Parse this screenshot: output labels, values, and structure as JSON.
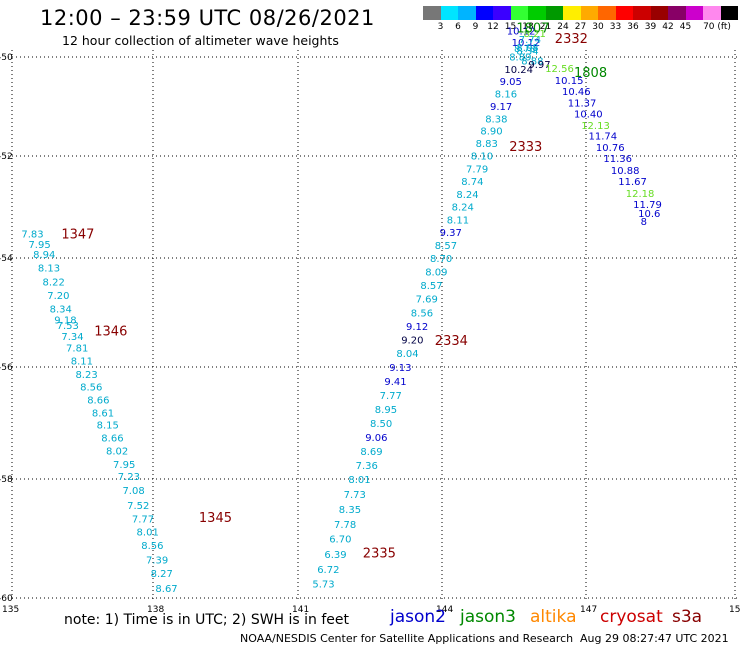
{
  "title": "12:00 – 23:59 UTC 08/26/2021",
  "subtitle": "12 hour collection of altimeter wave heights",
  "scale": {
    "colors": [
      "#777777",
      "#00e5ff",
      "#00b4ff",
      "#0000ff",
      "#3b00ff",
      "#33ff33",
      "#00cc00",
      "#009900",
      "#ffee00",
      "#ffaa00",
      "#ff6600",
      "#ff0000",
      "#cc0000",
      "#990000",
      "#880066",
      "#cc00cc",
      "#ff88ee",
      "#000000"
    ],
    "labels": [
      "3",
      "6",
      "9",
      "12",
      "15",
      "18",
      "21",
      "24",
      "27",
      "30",
      "33",
      "36",
      "39",
      "42",
      "45",
      "70 (ft)"
    ]
  },
  "note": "note: 1) Time is in UTC; 2) SWH is in feet",
  "legend": [
    {
      "name": "jason2",
      "color": "#0000cc"
    },
    {
      "name": "jason3",
      "color": "#008800"
    },
    {
      "name": "altika",
      "color": "#ff8800"
    },
    {
      "name": "cryosat",
      "color": "#cc0000"
    },
    {
      "name": "s3a",
      "color": "#880000"
    }
  ],
  "credit": "NOAA/NESDIS Center for Satellite Applications and Research",
  "timestamp": "Aug 29 08:27:47 UTC 2021",
  "chart_data": {
    "type": "scatter",
    "title": "12:00 – 23:59 UTC 08/26/2021",
    "xlabel": "",
    "ylabel": "",
    "xlim": [
      135,
      150
    ],
    "ylim": [
      -60.2,
      -49.8
    ],
    "x_ticks": [
      "135",
      "138",
      "141",
      "144",
      "147",
      "150"
    ],
    "y_ticks": [
      "-50",
      "-52",
      "-54",
      "-56",
      "-58",
      "-60"
    ],
    "grid": true,
    "series_colors": {
      "c": "#00aacc",
      "b": "#0000cc",
      "n": "#000044",
      "g": "#66dd22"
    },
    "points": [
      {
        "x": 135.2,
        "y": -53.6,
        "v": "7.83",
        "c": "c"
      },
      {
        "x": 135.35,
        "y": -53.8,
        "v": "7.95",
        "c": "c"
      },
      {
        "x": 135.45,
        "y": -54.0,
        "v": "8.94",
        "c": "c"
      },
      {
        "x": 135.55,
        "y": -54.25,
        "v": "8.13",
        "c": "c"
      },
      {
        "x": 135.65,
        "y": -54.5,
        "v": "8.22",
        "c": "c"
      },
      {
        "x": 135.75,
        "y": -54.75,
        "v": "7.20",
        "c": "c"
      },
      {
        "x": 135.8,
        "y": -55.0,
        "v": "8.34",
        "c": "c"
      },
      {
        "x": 135.9,
        "y": -55.2,
        "v": "9.18",
        "c": "c"
      },
      {
        "x": 135.95,
        "y": -55.3,
        "v": "7.53",
        "c": "c"
      },
      {
        "x": 136.05,
        "y": -55.5,
        "v": "7.34",
        "c": "c"
      },
      {
        "x": 136.15,
        "y": -55.72,
        "v": "7.81",
        "c": "c"
      },
      {
        "x": 136.25,
        "y": -55.95,
        "v": "8.11",
        "c": "c"
      },
      {
        "x": 136.35,
        "y": -56.2,
        "v": "8.23",
        "c": "c"
      },
      {
        "x": 136.45,
        "y": -56.42,
        "v": "8.56",
        "c": "c"
      },
      {
        "x": 136.6,
        "y": -56.65,
        "v": "8.66",
        "c": "c"
      },
      {
        "x": 136.7,
        "y": -56.88,
        "v": "8.61",
        "c": "c"
      },
      {
        "x": 136.8,
        "y": -57.1,
        "v": "8.15",
        "c": "c"
      },
      {
        "x": 136.9,
        "y": -57.33,
        "v": "8.66",
        "c": "c"
      },
      {
        "x": 137.0,
        "y": -57.56,
        "v": "8.02",
        "c": "c"
      },
      {
        "x": 137.15,
        "y": -57.8,
        "v": "7.95",
        "c": "c"
      },
      {
        "x": 137.25,
        "y": -58.02,
        "v": "7.23",
        "c": "c"
      },
      {
        "x": 137.35,
        "y": -58.25,
        "v": "7.08",
        "c": "c"
      },
      {
        "x": 137.45,
        "y": -58.5,
        "v": "7.52",
        "c": "c"
      },
      {
        "x": 137.55,
        "y": -58.73,
        "v": "7.77",
        "c": "c"
      },
      {
        "x": 137.65,
        "y": -58.95,
        "v": "8.01",
        "c": "c"
      },
      {
        "x": 137.75,
        "y": -59.18,
        "v": "8.56",
        "c": "c"
      },
      {
        "x": 137.85,
        "y": -59.42,
        "v": "7.39",
        "c": "c"
      },
      {
        "x": 137.95,
        "y": -59.65,
        "v": "8.27",
        "c": "c"
      },
      {
        "x": 138.05,
        "y": -59.9,
        "v": "8.67",
        "c": "c"
      },
      {
        "x": 141.3,
        "y": -59.82,
        "v": "5.73",
        "c": "c"
      },
      {
        "x": 141.4,
        "y": -59.58,
        "v": "6.72",
        "c": "c"
      },
      {
        "x": 141.55,
        "y": -59.33,
        "v": "6.39",
        "c": "c"
      },
      {
        "x": 141.65,
        "y": -59.07,
        "v": "6.70",
        "c": "c"
      },
      {
        "x": 141.75,
        "y": -58.82,
        "v": "7.78",
        "c": "c"
      },
      {
        "x": 141.85,
        "y": -58.57,
        "v": "8.35",
        "c": "c"
      },
      {
        "x": 141.95,
        "y": -58.32,
        "v": "7.73",
        "c": "c"
      },
      {
        "x": 142.05,
        "y": -58.07,
        "v": "8.01",
        "c": "c"
      },
      {
        "x": 142.2,
        "y": -57.82,
        "v": "7.36",
        "c": "c"
      },
      {
        "x": 142.3,
        "y": -57.57,
        "v": "8.69",
        "c": "c"
      },
      {
        "x": 142.4,
        "y": -57.32,
        "v": "9.06",
        "b": 1,
        "c": "b"
      },
      {
        "x": 142.5,
        "y": -57.07,
        "v": "8.50",
        "c": "c"
      },
      {
        "x": 142.6,
        "y": -56.82,
        "v": "8.95",
        "c": "c"
      },
      {
        "x": 142.7,
        "y": -56.57,
        "v": "7.77",
        "c": "c"
      },
      {
        "x": 142.8,
        "y": -56.32,
        "v": "9.41",
        "c": "b"
      },
      {
        "x": 142.9,
        "y": -56.07,
        "v": "9.13",
        "c": "b"
      },
      {
        "x": 143.05,
        "y": -55.82,
        "v": "8.04",
        "c": "c"
      },
      {
        "x": 143.15,
        "y": -55.57,
        "v": "9.20",
        "c": "n"
      },
      {
        "x": 143.25,
        "y": -55.32,
        "v": "9.12",
        "c": "b"
      },
      {
        "x": 143.35,
        "y": -55.07,
        "v": "8.56",
        "c": "c"
      },
      {
        "x": 143.45,
        "y": -54.82,
        "v": "7.69",
        "c": "c"
      },
      {
        "x": 143.55,
        "y": -54.57,
        "v": "8.57",
        "c": "c"
      },
      {
        "x": 143.65,
        "y": -54.32,
        "v": "8.09",
        "c": "c"
      },
      {
        "x": 143.75,
        "y": -54.07,
        "v": "8.70",
        "c": "c"
      },
      {
        "x": 143.85,
        "y": -53.82,
        "v": "8.57",
        "c": "c"
      },
      {
        "x": 143.95,
        "y": -53.57,
        "v": "9.37",
        "c": "b"
      },
      {
        "x": 144.1,
        "y": -53.32,
        "v": "8.11",
        "c": "c"
      },
      {
        "x": 144.2,
        "y": -53.07,
        "v": "8.24",
        "c": "c"
      },
      {
        "x": 144.3,
        "y": -52.82,
        "v": "8.24",
        "c": "c"
      },
      {
        "x": 144.4,
        "y": -52.57,
        "v": "8.74",
        "c": "c"
      },
      {
        "x": 144.5,
        "y": -52.32,
        "v": "7.79",
        "c": "c"
      },
      {
        "x": 144.6,
        "y": -52.07,
        "v": "8.10",
        "c": "c"
      },
      {
        "x": 144.7,
        "y": -51.82,
        "v": "8.83",
        "c": "c"
      },
      {
        "x": 144.8,
        "y": -51.57,
        "v": "8.90",
        "c": "c"
      },
      {
        "x": 144.9,
        "y": -51.32,
        "v": "8.38",
        "c": "c"
      },
      {
        "x": 145.0,
        "y": -51.07,
        "v": "9.17",
        "c": "b"
      },
      {
        "x": 145.1,
        "y": -50.82,
        "v": "8.16",
        "c": "c"
      },
      {
        "x": 145.2,
        "y": -50.57,
        "v": "9.05",
        "c": "b"
      },
      {
        "x": 145.3,
        "y": -50.32,
        "v": "10.24",
        "c": "n"
      },
      {
        "x": 145.4,
        "y": -50.07,
        "v": "8.89",
        "c": "c"
      },
      {
        "x": 145.5,
        "y": -49.9,
        "v": "8.78",
        "c": "c"
      },
      {
        "x": 145.35,
        "y": -49.55,
        "v": "10.12",
        "c": "b"
      },
      {
        "x": 145.45,
        "y": -49.78,
        "v": "10.12",
        "c": "b"
      },
      {
        "x": 145.6,
        "y": -49.72,
        "v": "7.74",
        "c": "c"
      },
      {
        "x": 145.55,
        "y": -49.88,
        "v": "8.08",
        "c": "c"
      },
      {
        "x": 145.55,
        "y": -49.95,
        "v": "8.34",
        "c": "c"
      },
      {
        "x": 145.7,
        "y": -49.6,
        "v": "8.21",
        "c": "g"
      },
      {
        "x": 145.65,
        "y": -50.15,
        "v": "8.88",
        "c": "c"
      },
      {
        "x": 145.8,
        "y": -50.22,
        "v": "9.97",
        "c": "n"
      },
      {
        "x": 146.15,
        "y": -50.3,
        "v": "12.56",
        "c": "g"
      },
      {
        "x": 146.35,
        "y": -50.55,
        "v": "10.15",
        "c": "b"
      },
      {
        "x": 146.5,
        "y": -50.77,
        "v": "10.46",
        "c": "b"
      },
      {
        "x": 146.62,
        "y": -51.0,
        "v": "11.37",
        "c": "b"
      },
      {
        "x": 146.75,
        "y": -51.22,
        "v": "10.40",
        "c": "b"
      },
      {
        "x": 146.9,
        "y": -51.45,
        "v": "12.13",
        "c": "g"
      },
      {
        "x": 147.05,
        "y": -51.67,
        "v": "11.74",
        "c": "b"
      },
      {
        "x": 147.2,
        "y": -51.9,
        "v": "10.76",
        "c": "b"
      },
      {
        "x": 147.35,
        "y": -52.12,
        "v": "11.36",
        "c": "b"
      },
      {
        "x": 147.5,
        "y": -52.35,
        "v": "10.88",
        "c": "b"
      },
      {
        "x": 147.65,
        "y": -52.57,
        "v": "11.67",
        "c": "b"
      },
      {
        "x": 147.8,
        "y": -52.8,
        "v": "12.18",
        "c": "g"
      },
      {
        "x": 147.95,
        "y": -53.02,
        "v": "11.79",
        "c": "b"
      },
      {
        "x": 148.05,
        "y": -53.2,
        "v": "10.6",
        "c": "b"
      },
      {
        "x": 148.1,
        "y": -53.35,
        "v": "8",
        "c": "b"
      }
    ],
    "annotations": [
      {
        "x": 136.05,
        "y": -53.62,
        "text": "1347",
        "color": "#880000"
      },
      {
        "x": 136.75,
        "y": -55.42,
        "text": "1346",
        "color": "#880000"
      },
      {
        "x": 138.95,
        "y": -58.72,
        "text": "1345",
        "color": "#880000"
      },
      {
        "x": 142.35,
        "y": -59.32,
        "text": "2335",
        "color": "#880000"
      },
      {
        "x": 143.85,
        "y": -55.6,
        "text": "2334",
        "color": "#880000"
      },
      {
        "x": 145.4,
        "y": -51.9,
        "text": "2333",
        "color": "#880000"
      },
      {
        "x": 146.35,
        "y": -49.72,
        "text": "2332",
        "color": "#880000"
      },
      {
        "x": 145.55,
        "y": -49.5,
        "text": "1807",
        "color": "#008800"
      },
      {
        "x": 146.75,
        "y": -50.4,
        "text": "1808",
        "color": "#008800"
      }
    ]
  }
}
